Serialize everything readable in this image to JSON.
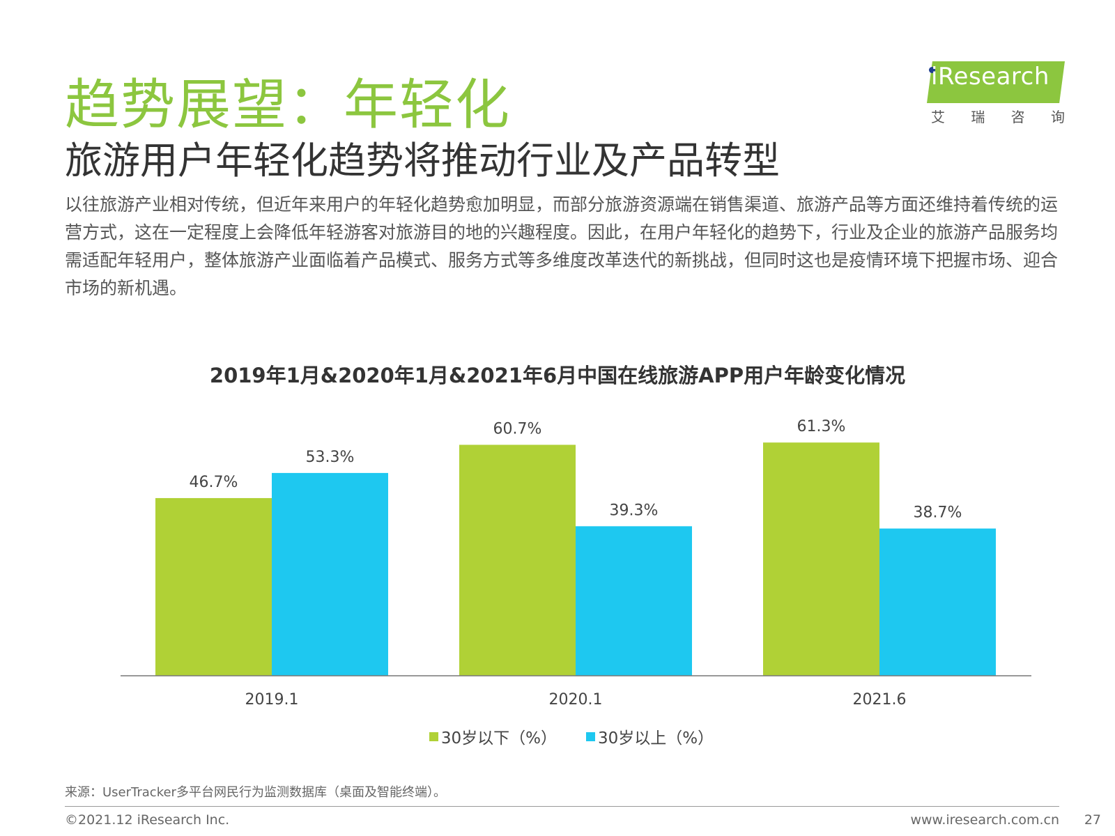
{
  "header": {
    "title": "趋势展望：年轻化",
    "subtitle": "旅游用户年轻化趋势将推动行业及产品转型"
  },
  "logo": {
    "text": "iResearch",
    "sub": [
      "艾",
      "瑞",
      "咨",
      "询"
    ],
    "accent": "#8cc63f"
  },
  "body_text": "以往旅游产业相对传统，但近年来用户的年轻化趋势愈加明显，而部分旅游资源端在销售渠道、旅游产品等方面还维持着传统的运营方式，这在一定程度上会降低年轻游客对旅游目的地的兴趣程度。因此，在用户年轻化的趋势下，行业及企业的旅游产品服务均需适配年轻用户，整体旅游产业面临着产品模式、服务方式等多维度改革迭代的新挑战，但同时这也是疫情环境下把握市场、迎合市场的新机遇。",
  "chart_data": {
    "type": "bar",
    "title": "2019年1月&2020年1月&2021年6月中国在线旅游APP用户年龄变化情况",
    "categories": [
      "2019.1",
      "2020.1",
      "2021.6"
    ],
    "series": [
      {
        "name": "30岁以下（%）",
        "values": [
          46.7,
          60.7,
          61.3
        ],
        "labels": [
          "46.7%",
          "60.7%",
          "61.3%"
        ],
        "color": "#b0d136"
      },
      {
        "name": "30岁以上（%）",
        "values": [
          53.3,
          39.3,
          38.7
        ],
        "labels": [
          "53.3%",
          "39.3%",
          "38.7%"
        ],
        "color": "#1ec8f0"
      }
    ],
    "ylim": [
      0,
      65
    ],
    "grid": false,
    "legend_position": "bottom"
  },
  "footer": {
    "source": "来源：UserTracker多平台网民行为监测数据库（桌面及智能终端）。",
    "copyright": "©2021.12 iResearch Inc.",
    "website": "www.iresearch.com.cn",
    "page": "27"
  }
}
